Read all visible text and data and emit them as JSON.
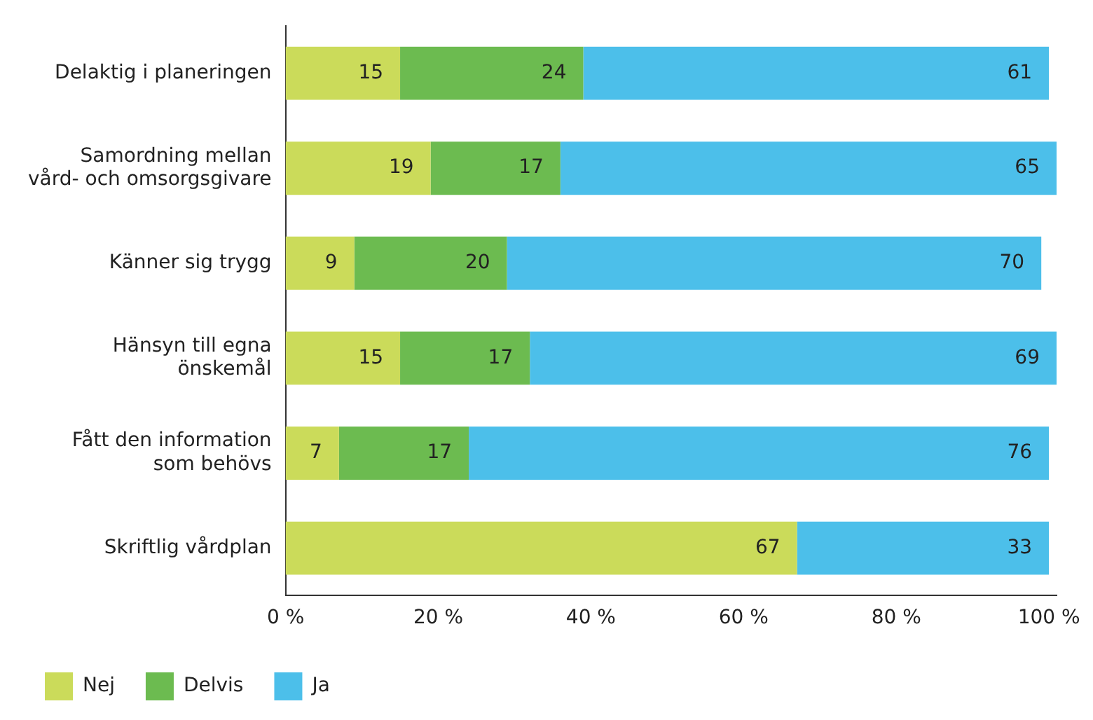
{
  "chart_data": {
    "type": "bar",
    "orientation": "horizontal",
    "stacked": true,
    "categories": [
      "Delaktig i planeringen",
      "Samordning mellan\nvård- och omsorgsgivare",
      "Känner sig trygg",
      "Hänsyn till egna\nönskemål",
      "Fått den information\nsom behövs",
      "Skriftlig vårdplan"
    ],
    "series": [
      {
        "name": "Nej",
        "color": "#cbdb5a",
        "values": [
          15,
          19,
          9,
          15,
          7,
          67
        ]
      },
      {
        "name": "Delvis",
        "color": "#6cbb50",
        "values": [
          24,
          17,
          20,
          17,
          17,
          null
        ]
      },
      {
        "name": "Ja",
        "color": "#4cbfea",
        "values": [
          61,
          65,
          70,
          69,
          76,
          33
        ]
      }
    ],
    "xlim": [
      0,
      101
    ],
    "xticks": [
      {
        "value": 0,
        "label": "0 %"
      },
      {
        "value": 20,
        "label": "20 %"
      },
      {
        "value": 40,
        "label": "40 %"
      },
      {
        "value": 60,
        "label": "60 %"
      },
      {
        "value": 80,
        "label": "80 %"
      },
      {
        "value": 100,
        "label": "100 %"
      }
    ],
    "grid": false,
    "legend": "bottom left",
    "data_labels": true
  }
}
